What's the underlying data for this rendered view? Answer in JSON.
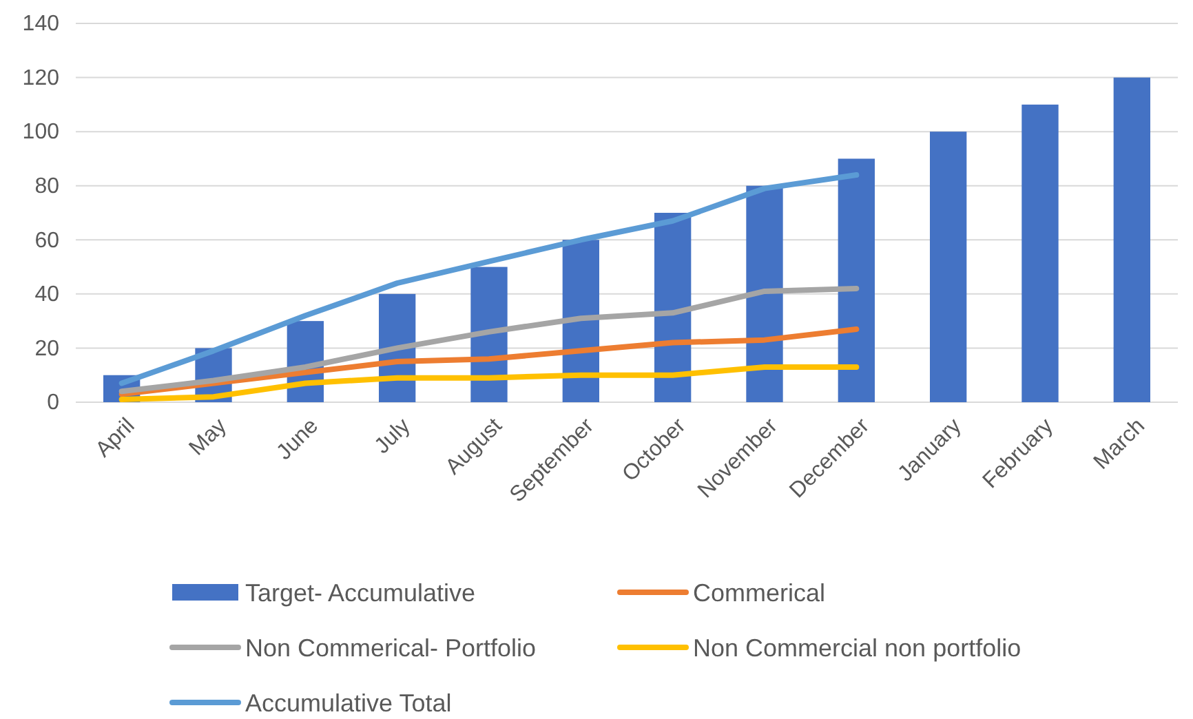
{
  "chart_data": {
    "type": "bar",
    "categories": [
      "April",
      "May",
      "June",
      "July",
      "August",
      "September",
      "October",
      "November",
      "December",
      "January",
      "February",
      "March"
    ],
    "series": [
      {
        "name": "Target- Accumulative",
        "color": "#4472c4",
        "values": [
          10,
          20,
          30,
          40,
          50,
          60,
          70,
          80,
          90,
          100,
          110,
          120
        ]
      },
      {
        "name": "Commerical",
        "type": "line",
        "color": "#ed7d31",
        "values": [
          3,
          7,
          11,
          15,
          16,
          19,
          22,
          23,
          27,
          null,
          null,
          null
        ]
      },
      {
        "name": "Non Commerical- Portfolio",
        "type": "line",
        "color": "#a5a5a5",
        "values": [
          4,
          8,
          13,
          20,
          26,
          31,
          33,
          41,
          42,
          null,
          null,
          null
        ]
      },
      {
        "name": "Non Commercial non portfolio",
        "type": "line",
        "color": "#ffc000",
        "values": [
          1,
          2,
          7,
          9,
          9,
          10,
          10,
          13,
          13,
          null,
          null,
          null
        ]
      },
      {
        "name": "Accumulative Total",
        "type": "line",
        "color": "#5b9bd5",
        "values": [
          7,
          19,
          32,
          44,
          52,
          60,
          67,
          79,
          84,
          null,
          null,
          null
        ]
      }
    ],
    "ylim": [
      0,
      140
    ],
    "yticks": [
      0,
      20,
      40,
      60,
      80,
      100,
      120,
      140
    ],
    "grid": "y",
    "legend": "bottom",
    "marker": "none",
    "line_style": "solid"
  }
}
